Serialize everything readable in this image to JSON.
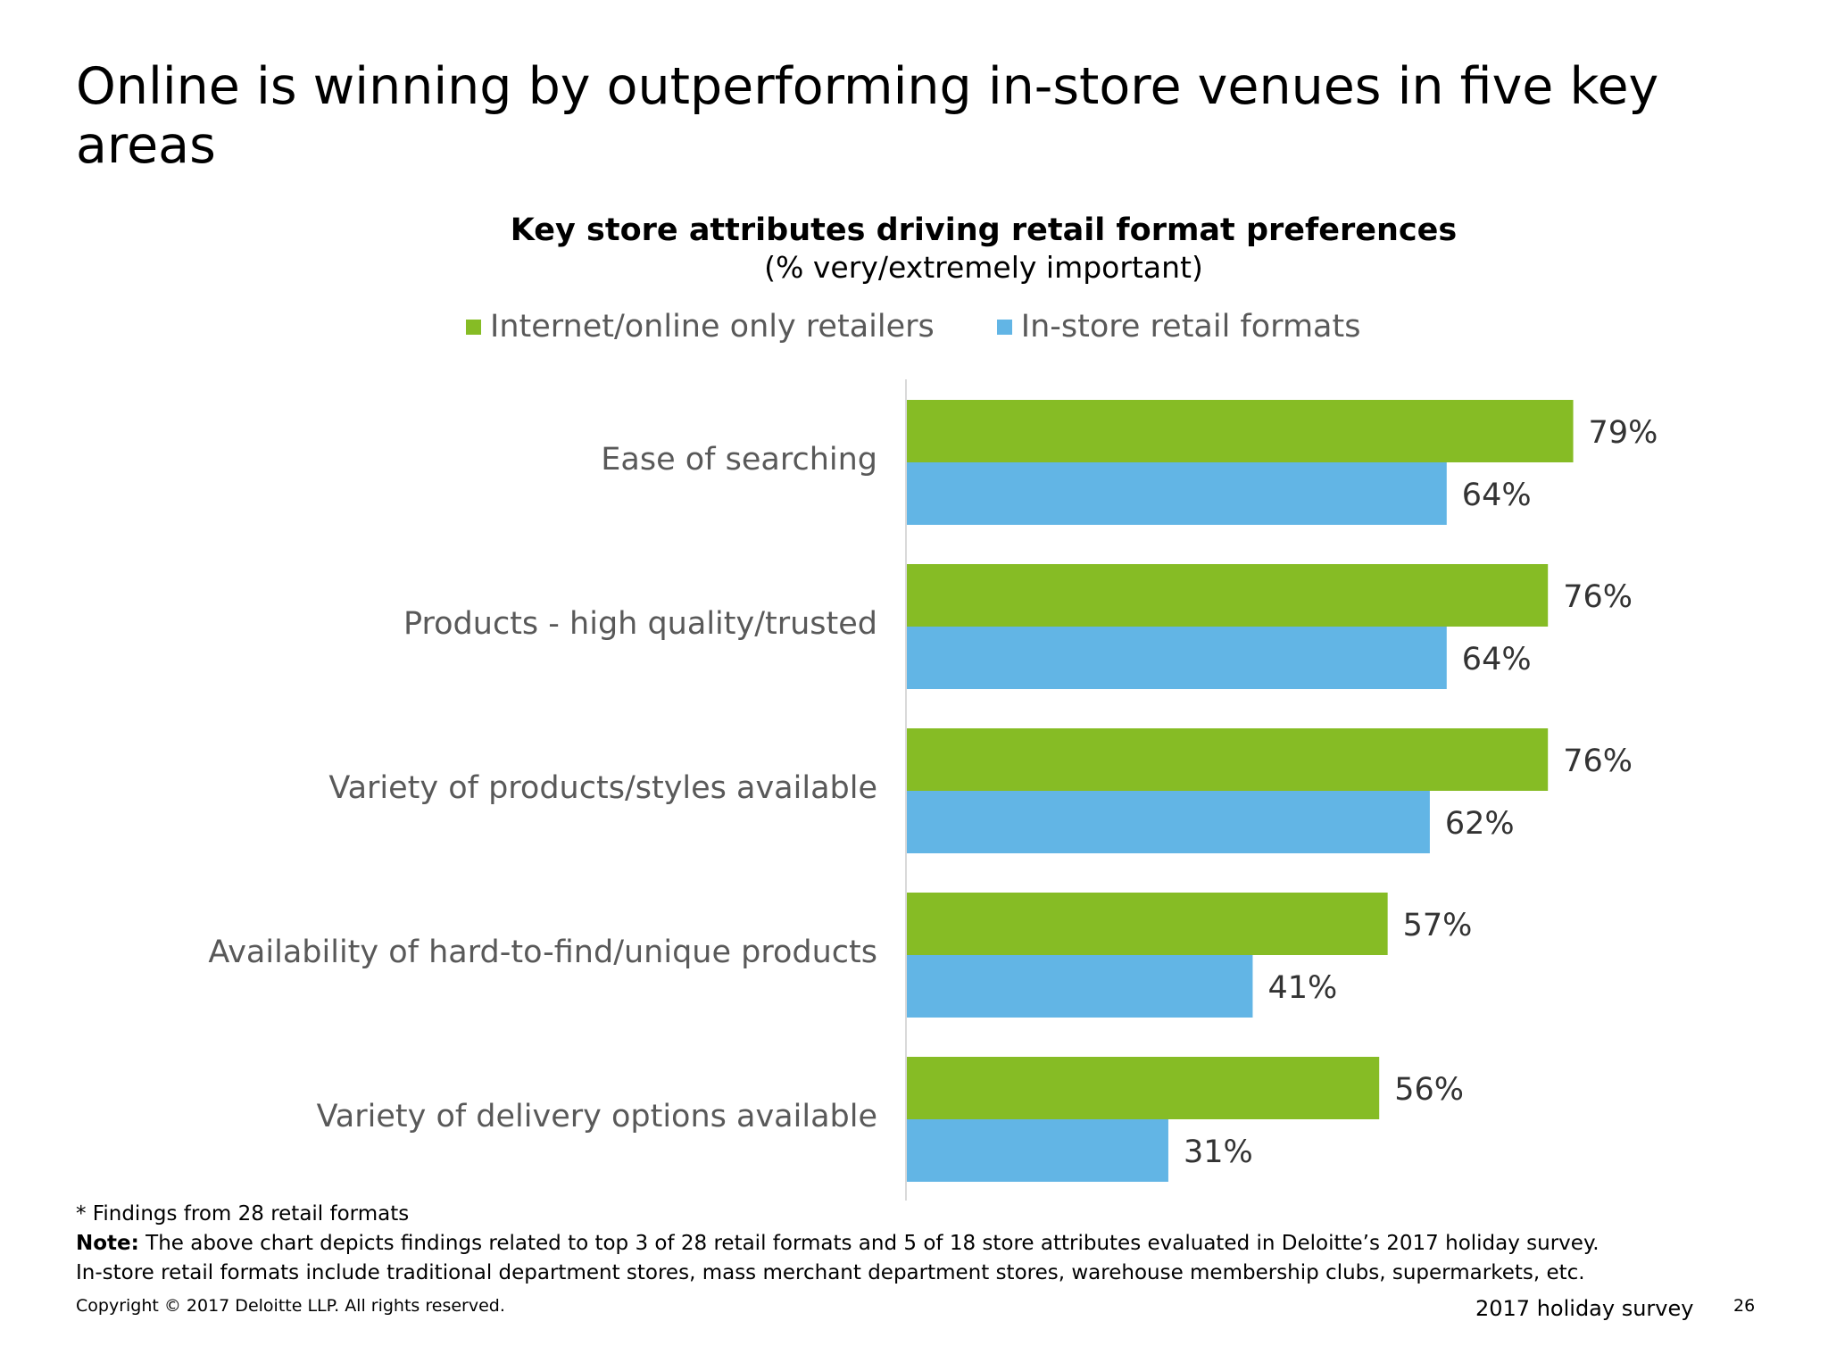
{
  "slide": {
    "title": "Online is winning by outperforming in-store venues in five key areas"
  },
  "chart_data": {
    "type": "bar",
    "orientation": "horizontal",
    "title": "Key store attributes driving retail format preferences",
    "subtitle": "(% very/extremely important)",
    "categories": [
      "Ease of searching",
      "Products - high quality/trusted",
      "Variety of products/styles available",
      "Availability of hard-to-find/unique products",
      "Variety of delivery options available"
    ],
    "series": [
      {
        "name": "Internet/online only retailers",
        "color": "#86bc25",
        "values": [
          79,
          76,
          76,
          57,
          56
        ],
        "labels": [
          "79%",
          "76%",
          "76%",
          "57%",
          "56%"
        ]
      },
      {
        "name": "In-store retail formats",
        "color": "#62b5e5",
        "values": [
          64,
          64,
          62,
          41,
          31
        ],
        "labels": [
          "64%",
          "64%",
          "62%",
          "41%",
          "31%"
        ]
      }
    ],
    "xlim": [
      0,
      100
    ],
    "legend": "top",
    "grid": false
  },
  "footer": {
    "footnote": "* Findings from 28 retail formats",
    "note_label": "Note:",
    "note_text": " The above chart depicts findings related to top 3 of 28 retail formats and 5 of 18 store attributes evaluated in Deloitte’s 2017 holiday survey.",
    "note_text2": "In-store retail formats include traditional department stores, mass merchant department stores, warehouse membership clubs, supermarkets, etc.",
    "copyright": "Copyright © 2017 Deloitte LLP. All rights reserved.",
    "survey": "2017 holiday survey",
    "page_number": "26"
  }
}
